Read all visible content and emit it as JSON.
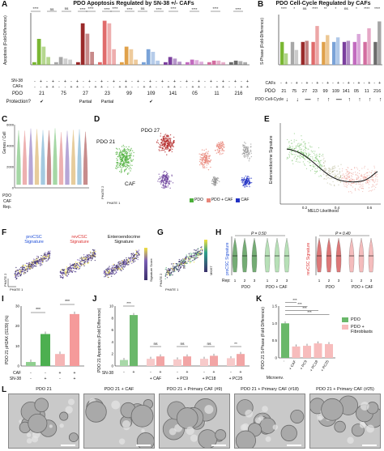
{
  "panelA": {
    "letter": "A",
    "title": "PDO Apoptosis Regulated by SN-38 +/- CAFs",
    "ylabel": "Apoptosis (Fold-Difference)",
    "sn38_label": "SN-38",
    "cafs_label": "CAFs",
    "pdo_label": "PDO",
    "protection_label": "Protection?",
    "sn38_row": [
      "-",
      "+",
      "-",
      "+",
      "-",
      "+",
      "-",
      "+",
      "-",
      "+",
      "-",
      "+",
      "-",
      "+",
      "-",
      "+",
      "-",
      "+",
      "-",
      "+",
      "-",
      "+",
      "-",
      "+",
      "-",
      "+",
      "-",
      "+",
      "-",
      "+",
      "-",
      "+",
      "-",
      "+",
      "-",
      "+"
    ],
    "pdos": [
      "21",
      "75",
      "27",
      "23",
      "99",
      "109",
      "141",
      "05",
      "11",
      "216"
    ],
    "protection": [
      "✔",
      "",
      "Partial",
      "Partial",
      "",
      "✔",
      "",
      "",
      "",
      ""
    ],
    "sig": [
      "****",
      "ns",
      "ns",
      "****",
      "****",
      "****",
      "****",
      "****",
      "ns",
      "****",
      "****",
      "****",
      "****",
      "****"
    ],
    "colors": [
      "#7ab733",
      "#a8a8a8",
      "#9a2a2a",
      "#e06b6b",
      "#e0a14a",
      "#7aa3d8",
      "#7b3f9e",
      "#c26bbf",
      "#d36da0",
      "#6b6b6b"
    ]
  },
  "panelB": {
    "letter": "B",
    "title": "PDO Cell-Cycle Regulated by CAFs",
    "ylabel": "S-Phase (Fold-Difference)",
    "cafs_label": "CAFs",
    "pdo_label": "PDO",
    "cellcycle_label": "PDO Cell-Cycle",
    "cafs_row": [
      "-",
      "+",
      "-",
      "+",
      "-",
      "+",
      "-",
      "+",
      "-",
      "+",
      "-",
      "+",
      "-",
      "+",
      "-",
      "+",
      "-",
      "+",
      "-",
      "+"
    ],
    "pdos": [
      "21",
      "75",
      "27",
      "23",
      "99",
      "109",
      "141",
      "05",
      "11",
      "216"
    ],
    "arrows": [
      "↓",
      "↓",
      "—",
      "↑",
      "↑",
      "—",
      "↑",
      "↑",
      "↑",
      "↑"
    ],
    "sig": [
      "****",
      "*",
      "ns",
      "****",
      "**",
      "*",
      "ns",
      "*",
      "****",
      "****"
    ]
  },
  "panelC": {
    "letter": "C",
    "ylabel": "Genes / Cell",
    "pdo_names": [
      "PDO21",
      "PDO27"
    ],
    "pdo_label": "PDO",
    "caf_label": "CAF",
    "rep_label": "Rep.",
    "caf_row": [
      "-",
      "-",
      "-",
      "+",
      "+",
      "+",
      "-",
      "-",
      "-",
      "+",
      "+",
      "+"
    ],
    "rep_row": [
      "1",
      "2",
      "3",
      "1",
      "2",
      "3",
      "1",
      "2",
      "3",
      "1",
      "2",
      "3"
    ],
    "yticks": [
      "0",
      "2000",
      "4000",
      "6000"
    ]
  },
  "panelD": {
    "letter": "D",
    "labels": [
      "PDO 21",
      "PDO 27",
      "CAF"
    ],
    "axis1": "PHATE 1",
    "axis2": "PHATE 2",
    "legend": [
      "PDO",
      "PDO + CAF",
      "CAF"
    ],
    "colors": [
      "#4caf3a",
      "#e8867a",
      "#2231c4"
    ]
  },
  "panelE": {
    "letter": "E",
    "ylabel": "Enteroendocrine Signature",
    "xlabel": "MELD Likelihood",
    "xticks": [
      "0.2",
      "0.4",
      "0.6"
    ]
  },
  "panelF": {
    "letter": "F",
    "sigs": [
      "proCSC Signature",
      "revCSC Signature",
      "Enteroendocrine Signature"
    ],
    "sig_colors": [
      "#1f4fd8",
      "#d33",
      "#111"
    ],
    "legend": "Signature Score",
    "axis1": "PHATE 1",
    "axis2": "PHATE 2"
  },
  "panelG": {
    "letter": "G",
    "legend": "MKI67",
    "axis1": "PHATE 1",
    "axis2": "PHATE 2"
  },
  "panelH": {
    "letter": "H",
    "left_label": "proCSC Signature",
    "right_label": "revCSC Signature",
    "pvals": [
      "P = 0.50",
      "P = 0.40"
    ],
    "rep_label": "Rep:",
    "reps": [
      "1",
      "2",
      "3",
      "1",
      "2",
      "3"
    ],
    "groups": [
      "PDO",
      "PDO + CAF"
    ]
  },
  "panelI": {
    "letter": "I",
    "ylabel": "PDO 21 pH2AX (S139) (%)",
    "caf_label": "CAF",
    "sn38_label": "SN-38",
    "caf_row": [
      "-",
      "-",
      "+",
      "+"
    ],
    "sn38_row": [
      "-",
      "+",
      "-",
      "+"
    ],
    "sig": [
      "***",
      "***"
    ],
    "yticks": [
      "0",
      "10",
      "20",
      "30"
    ],
    "chart_data": {
      "type": "bar",
      "categories": [
        "-/-",
        "-/+",
        "+/-",
        "+/+"
      ],
      "values": [
        2,
        16,
        6,
        26
      ],
      "ylim": [
        0,
        30
      ]
    }
  },
  "panelJ": {
    "letter": "J",
    "ylabel": "PDO 21 Apoptosis (Fold Difference)",
    "sn38_label": "SN-38",
    "groups": [
      "+ CAF",
      "+ PC9",
      "+ PC18",
      "+ PC25"
    ],
    "sig": [
      "***",
      "ns",
      "ns",
      "ns",
      "**"
    ],
    "yticks": [
      "0",
      "2",
      "4",
      "6",
      "8",
      "10"
    ],
    "chart_data": {
      "type": "bar",
      "categories": [
        "-",
        "+",
        "+ CAF -",
        "+ CAF +",
        "+ PC9 -",
        "+ PC9 +",
        "+ PC18 -",
        "+ PC18 +",
        "+ PC25 -",
        "+ PC25 +"
      ],
      "values": [
        1,
        8.5,
        1.2,
        1.6,
        1.1,
        1.6,
        1.2,
        1.7,
        1.3,
        2.0
      ],
      "ylim": [
        0,
        10
      ]
    }
  },
  "panelK": {
    "letter": "K",
    "ylabel": "PDO 21 S-Phase (Fold Difference)",
    "microenv_label": "Microenv.",
    "categories": [
      "-",
      "+ CAF",
      "+ PC9",
      "+ PC18",
      "+ PC25"
    ],
    "sig": [
      "***",
      "***",
      "***",
      "***"
    ],
    "legend": [
      "PDO",
      "PDO + Fibroblasts"
    ],
    "yticks": [
      "0",
      "0.5",
      "1.0",
      "1.5"
    ],
    "chart_data": {
      "type": "bar",
      "categories": [
        "-",
        "+ CAF",
        "+ PC9",
        "+ PC18",
        "+ PC25"
      ],
      "values": [
        1.0,
        0.33,
        0.35,
        0.42,
        0.4
      ],
      "ylim": [
        0,
        1.5
      ]
    }
  },
  "panelL": {
    "letter": "L",
    "captions": [
      "PDO 21",
      "PDO 21 + CAF",
      "PDO 21 + Primary CAF (#9)",
      "PDO 21 + Primary CAF (#18)",
      "PDO 21 + Primary CAF (#25)"
    ]
  }
}
